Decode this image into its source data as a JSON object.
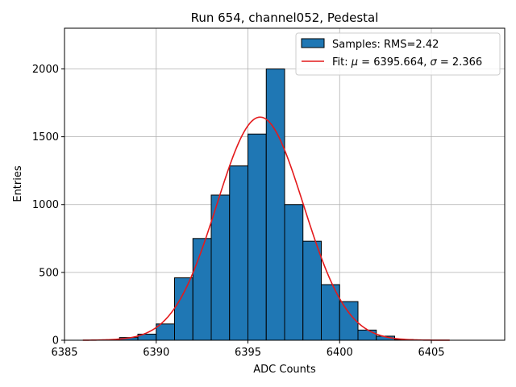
{
  "chart_data": {
    "type": "bar",
    "subtype": "histogram",
    "title": "Run 654, channel052, Pedestal",
    "xlabel": "ADC Counts",
    "ylabel": "Entries",
    "xlim": [
      6385,
      6409
    ],
    "ylim": [
      0,
      2300
    ],
    "xticks": [
      6385,
      6390,
      6395,
      6400,
      6405
    ],
    "xtick_labels": [
      "6385",
      "6390",
      "6395",
      "6400",
      "6405"
    ],
    "yticks": [
      0,
      500,
      1000,
      1500,
      2000
    ],
    "ytick_labels": [
      "0",
      "500",
      "1000",
      "1500",
      "2000"
    ],
    "grid": true,
    "legend_position": "top-right",
    "legend": [
      {
        "label": "Samples: RMS=2.42",
        "kind": "patch"
      },
      {
        "label_prefix": "Fit: ",
        "mu_symbol": "μ",
        "mu_text": " = 6395.664, ",
        "sigma_symbol": "σ",
        "sigma_text": " = 2.366",
        "kind": "line"
      }
    ],
    "bin_width": 1,
    "bins": [
      {
        "left": 6386.0,
        "count": 0
      },
      {
        "left": 6387.0,
        "count": 3
      },
      {
        "left": 6388.0,
        "count": 20
      },
      {
        "left": 6389.0,
        "count": 45
      },
      {
        "left": 6390.0,
        "count": 120
      },
      {
        "left": 6391.0,
        "count": 460
      },
      {
        "left": 6392.0,
        "count": 750
      },
      {
        "left": 6393.0,
        "count": 1070
      },
      {
        "left": 6394.0,
        "count": 1285
      },
      {
        "left": 6395.0,
        "count": 1520
      },
      {
        "left": 6396.0,
        "count": 2000
      },
      {
        "left": 6397.0,
        "count": 1000
      },
      {
        "left": 6398.0,
        "count": 730
      },
      {
        "left": 6399.0,
        "count": 410
      },
      {
        "left": 6400.0,
        "count": 285
      },
      {
        "left": 6401.0,
        "count": 75
      },
      {
        "left": 6402.0,
        "count": 30
      },
      {
        "left": 6403.0,
        "count": 5
      },
      {
        "left": 6404.0,
        "count": 0
      }
    ],
    "fit": {
      "mu": 6395.664,
      "sigma": 2.366,
      "amplitude": 1645,
      "x_range": [
        6386,
        6406
      ]
    },
    "colors": {
      "bar_fill": "#1f77b4",
      "bar_edge": "#000000",
      "fit_line": "#e41a1c",
      "grid": "#b0b0b0"
    }
  }
}
